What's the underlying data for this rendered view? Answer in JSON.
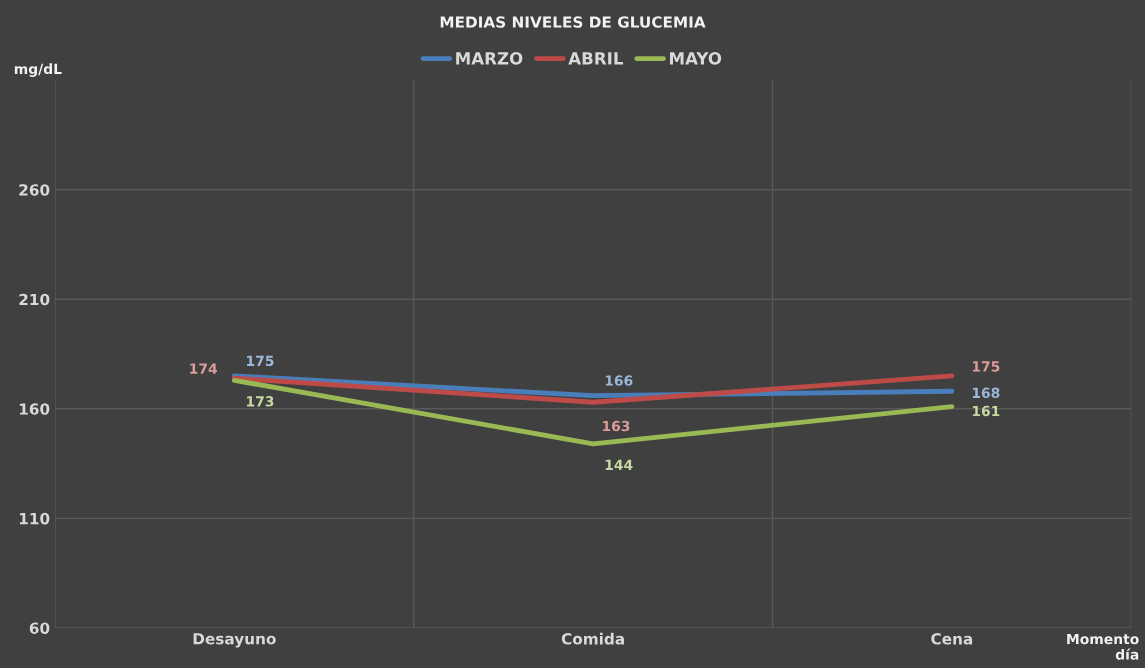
{
  "chart_data": {
    "type": "line",
    "title": "MEDIAS NIVELES DE GLUCEMIA",
    "ylabel": "mg/dL",
    "xlabel": "Momento\ndía",
    "categories": [
      "Desayuno",
      "Comida",
      "Cena"
    ],
    "series": [
      {
        "name": "MARZO",
        "color": "#4a7ebb",
        "values": [
          175,
          166,
          168
        ]
      },
      {
        "name": "ABRIL",
        "color": "#be4b48",
        "values": [
          174,
          163,
          175
        ]
      },
      {
        "name": "MAYO",
        "color": "#98b954",
        "values": [
          173,
          144,
          161
        ]
      }
    ],
    "ylim": [
      60,
      310
    ],
    "yticks": [
      60,
      110,
      160,
      210,
      260
    ],
    "grid": true,
    "legend": "top",
    "data_labels": true,
    "marker": "none",
    "line_style": "solid"
  }
}
